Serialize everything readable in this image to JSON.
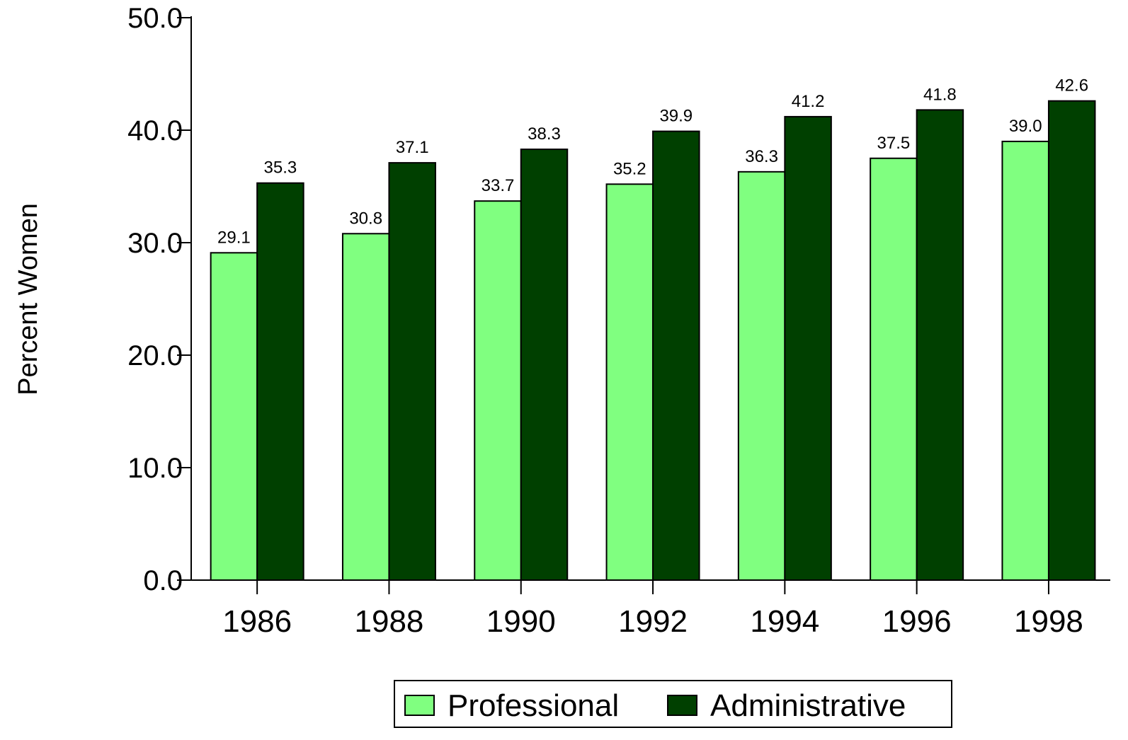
{
  "chart_data": {
    "type": "bar",
    "y_label": "Percent Women",
    "categories": [
      "1986",
      "1988",
      "1990",
      "1992",
      "1994",
      "1996",
      "1998"
    ],
    "series": [
      {
        "name": "Professional",
        "color": "#80ff80",
        "values": [
          29.1,
          30.8,
          33.7,
          35.2,
          36.3,
          37.5,
          39.0
        ],
        "value_labels": [
          "29.1",
          "30.8",
          "33.7",
          "35.2",
          "36.3",
          "37.5",
          "39.0"
        ]
      },
      {
        "name": "Administrative",
        "color": "#004000",
        "values": [
          35.3,
          37.1,
          38.3,
          39.9,
          41.2,
          41.8,
          42.6
        ],
        "value_labels": [
          "35.3",
          "37.1",
          "38.3",
          "39.9",
          "41.2",
          "41.8",
          "42.6"
        ]
      }
    ],
    "ylim": [
      0,
      50
    ],
    "yticks": [
      {
        "value": 0,
        "label": "0.0"
      },
      {
        "value": 10,
        "label": "10.0"
      },
      {
        "value": 20,
        "label": "20.0"
      },
      {
        "value": 30,
        "label": "30.0"
      },
      {
        "value": 40,
        "label": "40.0"
      },
      {
        "value": 50,
        "label": "50.0"
      }
    ],
    "legend": "bottom"
  }
}
